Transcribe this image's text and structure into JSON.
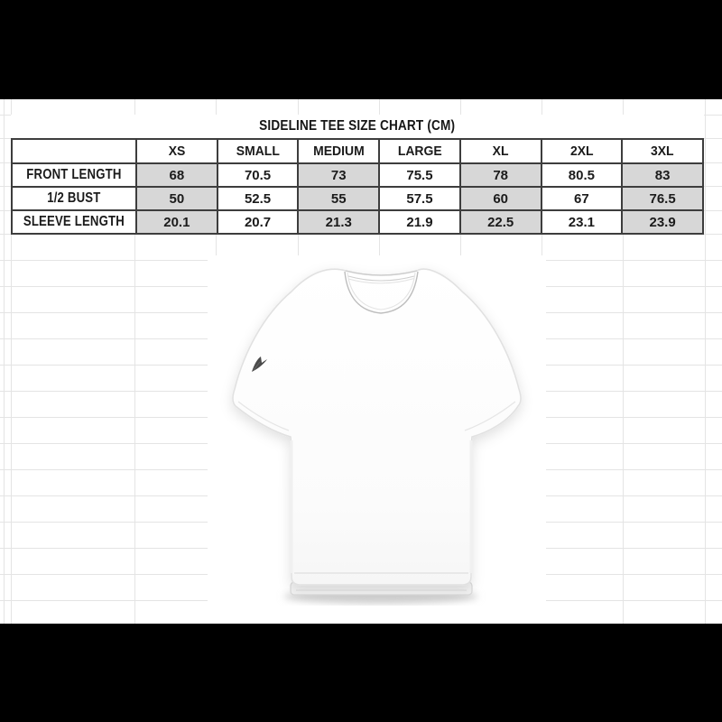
{
  "size_chart": {
    "title": "SIDELINE TEE SIZE CHART (CM)",
    "columns": [
      "XS",
      "SMALL",
      "MEDIUM",
      "LARGE",
      "XL",
      "2XL",
      "3XL"
    ],
    "rows": [
      {
        "label": "FRONT LENGTH",
        "values": [
          "68",
          "70.5",
          "73",
          "75.5",
          "78",
          "80.5",
          "83"
        ]
      },
      {
        "label": "1/2 BUST",
        "values": [
          "50",
          "52.5",
          "55",
          "57.5",
          "60",
          "67",
          "76.5"
        ]
      },
      {
        "label": "SLEEVE LENGTH",
        "values": [
          "20.1",
          "20.7",
          "21.3",
          "21.9",
          "22.5",
          "23.1",
          "23.9"
        ]
      }
    ],
    "shaded_column_indices": [
      0,
      2,
      4,
      6
    ]
  },
  "product_image": {
    "name": "white-oversized-tee-front-mockup",
    "sleeve_logo": "small dark brand mark on sleeve"
  },
  "colors": {
    "letterbox": "#000000",
    "sheet_background": "#ffffff",
    "grid_line": "#e4e4e4",
    "table_border": "#3d3d3d",
    "cell_shade": "#d7d7d7",
    "text": "#1b1b1b"
  }
}
